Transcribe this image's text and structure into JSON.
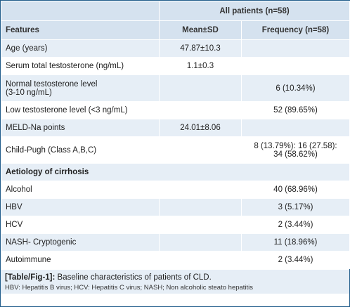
{
  "table": {
    "header": {
      "group_label": "All patients (n=58)",
      "features_label": "Features",
      "mean_sd_label": "Mean±SD",
      "frequency_label": "Frequency (n=58)"
    },
    "rows": [
      {
        "feature": "Age (years)",
        "mean": "47.87±10.3",
        "freq": ""
      },
      {
        "feature": "Serum total testosterone (ng/mL)",
        "mean": "1.1±0.3",
        "freq": ""
      },
      {
        "feature_line1": "Normal testosterone level",
        "feature_line2": "(3-10 ng/mL)",
        "mean": "",
        "freq": "6 (10.34%)"
      },
      {
        "feature": "Low testosterone level (<3 ng/mL)",
        "mean": "",
        "freq": "52 (89.65%)"
      },
      {
        "feature": "MELD-Na points",
        "mean": "24.01±8.06",
        "freq": ""
      },
      {
        "feature": "Child-Pugh (Class A,B,C)",
        "mean": "",
        "freq_line1": "8 (13.79%): 16 (27.58):",
        "freq_line2": "34 (58.62%)"
      }
    ],
    "section_title": "Aetiology of cirrhosis",
    "aetiology": [
      {
        "feature": "Alcohol",
        "freq": "40 (68.96%)"
      },
      {
        "feature": "HBV",
        "freq": "3 (5.17%)"
      },
      {
        "feature": "HCV",
        "freq": "2 (3.44%)"
      },
      {
        "feature": "NASH- Cryptogenic",
        "freq": "11 (18.96%)"
      },
      {
        "feature": "Autoimmune",
        "freq": "2 (3.44%)"
      }
    ]
  },
  "caption": {
    "label": "[Table/Fig-1]:",
    "text": " Baseline characteristics of patients of CLD.",
    "footnote": "HBV: Hepatitis B virus; HCV: Hepatitis C virus; NASH; Non alcoholic steato hepatitis"
  },
  "colors": {
    "header_bg": "#d5e2ef",
    "alt_row_bg": "#e6eef6",
    "border": "#1f5b8a"
  }
}
